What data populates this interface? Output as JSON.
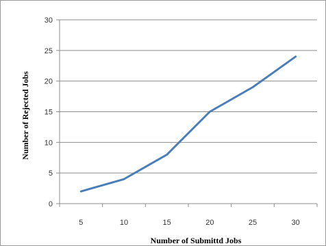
{
  "chart_data": {
    "type": "line",
    "title": "",
    "xlabel": "Number of Submittd  Jobs",
    "ylabel": "Number of Rejected  Jobs",
    "categories": [
      "5",
      "10",
      "15",
      "20",
      "25",
      "30"
    ],
    "series": [
      {
        "values": [
          2,
          4,
          8,
          15,
          19,
          24
        ]
      }
    ],
    "ylim": [
      0,
      30
    ],
    "yticks": [
      0,
      5,
      10,
      15,
      20,
      25,
      30
    ],
    "grid": "horizontal",
    "legend": "none",
    "line_color": "#4a7ebb",
    "grid_color": "#8c8c8c"
  }
}
